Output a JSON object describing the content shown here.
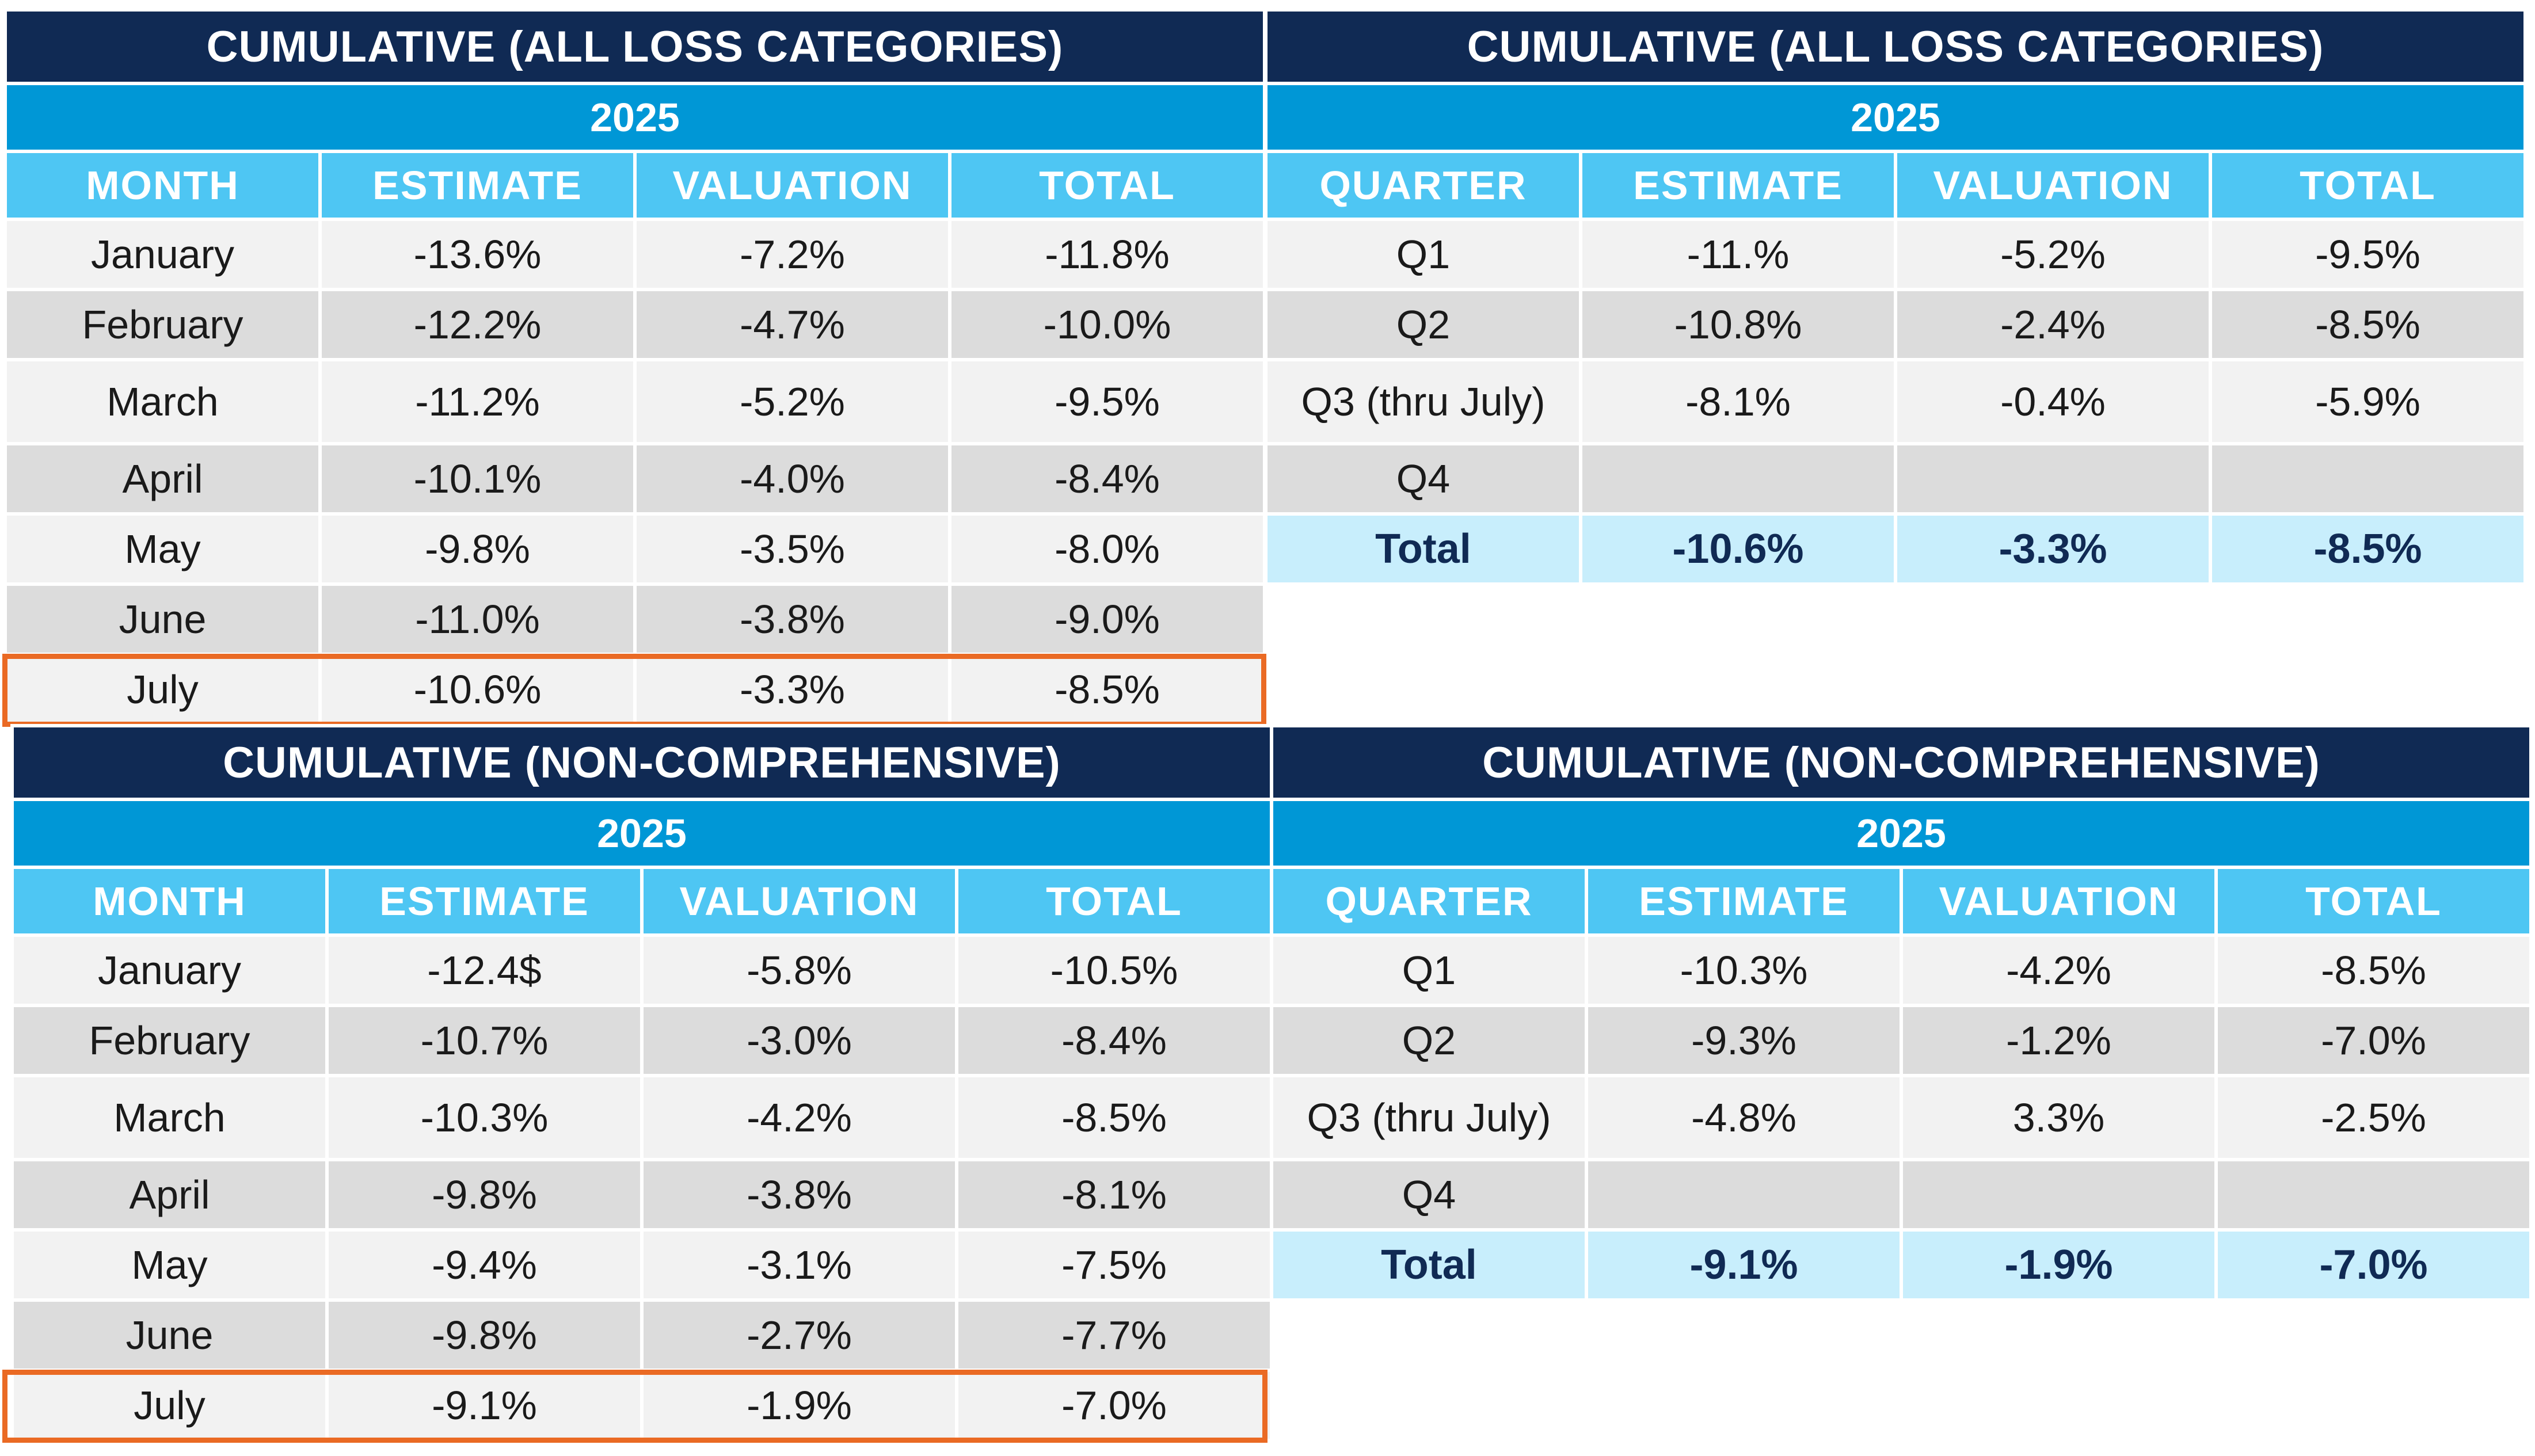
{
  "tables": {
    "all_monthly": {
      "title": "CUMULATIVE (ALL LOSS CATEGORIES)",
      "year": "2025",
      "headers": [
        "MONTH",
        "ESTIMATE",
        "VALUATION",
        "TOTAL"
      ],
      "rows": [
        [
          "January",
          "-13.6%",
          "-7.2%",
          "-11.8%"
        ],
        [
          "February",
          "-12.2%",
          "-4.7%",
          "-10.0%"
        ],
        [
          "March",
          "-11.2%",
          "-5.2%",
          "-9.5%"
        ],
        [
          "April",
          "-10.1%",
          "-4.0%",
          "-8.4%"
        ],
        [
          "May",
          "-9.8%",
          "-3.5%",
          "-8.0%"
        ],
        [
          "June",
          "-11.0%",
          "-3.8%",
          "-9.0%"
        ],
        [
          "July",
          "-10.6%",
          "-3.3%",
          "-8.5%"
        ]
      ]
    },
    "all_quarterly": {
      "title": "CUMULATIVE (ALL LOSS CATEGORIES)",
      "year": "2025",
      "headers": [
        "QUARTER",
        "ESTIMATE",
        "VALUATION",
        "TOTAL"
      ],
      "rows": [
        [
          "Q1",
          "-11.%",
          "-5.2%",
          "-9.5%"
        ],
        [
          "Q2",
          "-10.8%",
          "-2.4%",
          "-8.5%"
        ],
        [
          "Q3 (thru July)",
          "-8.1%",
          "-0.4%",
          "-5.9%"
        ],
        [
          "Q4",
          "",
          "",
          ""
        ]
      ],
      "total": [
        "Total",
        "-10.6%",
        "-3.3%",
        "-8.5%"
      ]
    },
    "noncomp_monthly": {
      "title": "CUMULATIVE (NON-COMPREHENSIVE)",
      "year": "2025",
      "headers": [
        "MONTH",
        "ESTIMATE",
        "VALUATION",
        "TOTAL"
      ],
      "rows": [
        [
          "January",
          "-12.4$",
          "-5.8%",
          "-10.5%"
        ],
        [
          "February",
          "-10.7%",
          "-3.0%",
          "-8.4%"
        ],
        [
          "March",
          "-10.3%",
          "-4.2%",
          "-8.5%"
        ],
        [
          "April",
          "-9.8%",
          "-3.8%",
          "-8.1%"
        ],
        [
          "May",
          "-9.4%",
          "-3.1%",
          "-7.5%"
        ],
        [
          "June",
          "-9.8%",
          "-2.7%",
          "-7.7%"
        ],
        [
          "July",
          "-9.1%",
          "-1.9%",
          "-7.0%"
        ]
      ]
    },
    "noncomp_quarterly": {
      "title": "CUMULATIVE (NON-COMPREHENSIVE)",
      "year": "2025",
      "headers": [
        "QUARTER",
        "ESTIMATE",
        "VALUATION",
        "TOTAL"
      ],
      "rows": [
        [
          "Q1",
          "-10.3%",
          "-4.2%",
          "-8.5%"
        ],
        [
          "Q2",
          "-9.3%",
          "-1.2%",
          "-7.0%"
        ],
        [
          "Q3 (thru July)",
          "-4.8%",
          "3.3%",
          "-2.5%"
        ],
        [
          "Q4",
          "",
          "",
          ""
        ]
      ],
      "total": [
        "Total",
        "-9.1%",
        "-1.9%",
        "-7.0%"
      ]
    }
  },
  "colors": {
    "title_bg": "#102a54",
    "year_bg": "#0097d6",
    "header_bg": "#4ec6f3",
    "row_light": "#f2f2f2",
    "row_dark": "#dcdcdc",
    "total_bg": "#c8eefc",
    "highlight": "#ea6a24"
  }
}
